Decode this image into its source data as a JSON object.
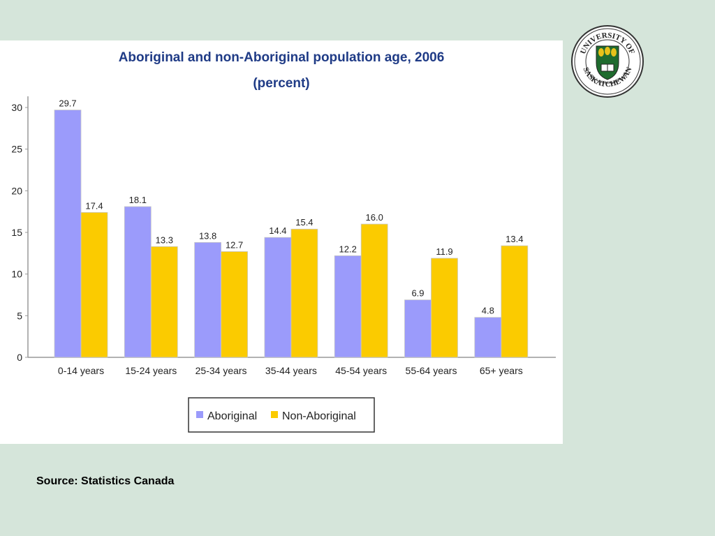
{
  "chart_data": {
    "type": "bar",
    "title": "Aboriginal and non-Aboriginal population age, 2006",
    "subtitle": "(percent)",
    "categories": [
      "0-14 years",
      "15-24 years",
      "25-34 years",
      "35-44 years",
      "45-54 years",
      "55-64 years",
      "65+ years"
    ],
    "series": [
      {
        "name": "Aboriginal",
        "color": "#9b9bfb",
        "values": [
          29.7,
          18.1,
          13.8,
          14.4,
          12.2,
          6.9,
          4.8
        ],
        "labels": [
          "29.7",
          "18.1",
          "13.8",
          "14.4",
          "12.2",
          "6.9",
          "4.8"
        ]
      },
      {
        "name": "Non-Aboriginal",
        "color": "#fbcb00",
        "values": [
          17.4,
          13.3,
          12.7,
          15.4,
          16.0,
          11.9,
          13.4
        ],
        "labels": [
          "17.4",
          "13.3",
          "12.7",
          "15.4",
          "16.0",
          "11.9",
          "13.4"
        ]
      }
    ],
    "ylim": [
      0,
      30
    ],
    "yticks": [
      0,
      5,
      10,
      15,
      20,
      25,
      30
    ],
    "xlabel": "",
    "ylabel": "",
    "grid": false,
    "legend_position": "bottom"
  },
  "logo": {
    "arc_top": "UNIVERSITY OF",
    "arc_bottom": "SASKATCHEWAN",
    "color_green": "#1f6b2e",
    "color_gold": "#e8c21a"
  },
  "source": "Source: Statistics Canada"
}
